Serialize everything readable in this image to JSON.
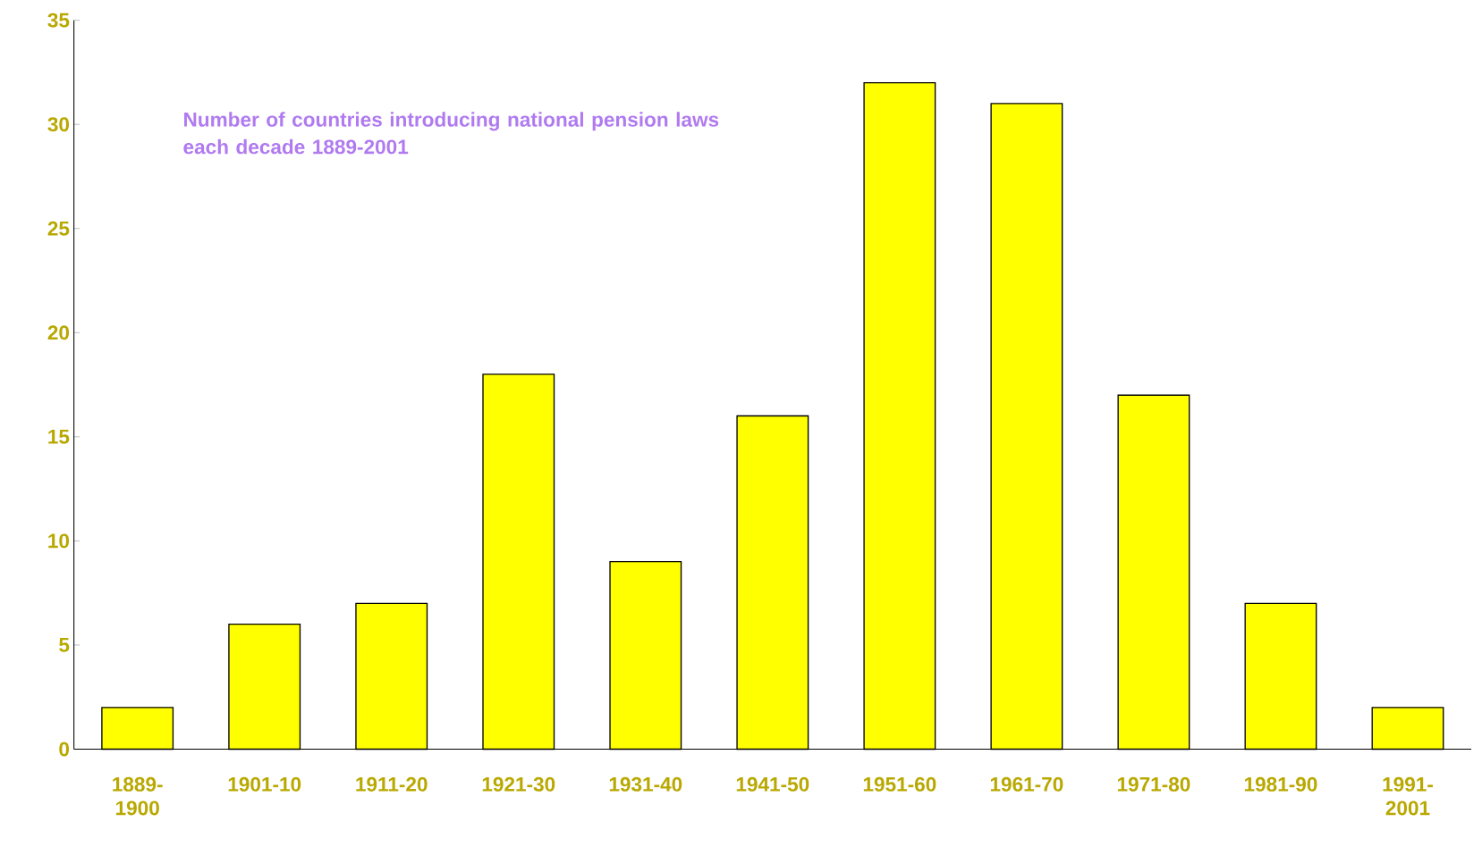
{
  "chart_data": {
    "type": "bar",
    "title": "Number of countries introducing national pension laws each decade 1889-2001",
    "categories": [
      "1889-1900",
      "1901-10",
      "1911-20",
      "1921-30",
      "1931-40",
      "1941-50",
      "1951-60",
      "1961-70",
      "1971-80",
      "1981-90",
      "1991-2001"
    ],
    "values": [
      2,
      6,
      7,
      18,
      9,
      16,
      32,
      31,
      17,
      7,
      2
    ],
    "color": "#ffff00",
    "ylim": [
      0,
      35
    ],
    "yticks": [
      0,
      5,
      10,
      15,
      20,
      25,
      30,
      35
    ],
    "grid": false
  }
}
